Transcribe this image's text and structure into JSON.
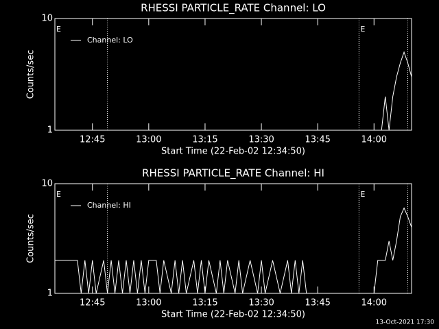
{
  "chart_data": [
    {
      "type": "line",
      "title": "RHESSI PARTICLE_RATE Channel: LO",
      "xlabel": "Start Time (22-Feb-02 12:34:50)",
      "ylabel": "Counts/sec",
      "log_y": true,
      "ylim": [
        1,
        10
      ],
      "yticks": [
        1,
        10
      ],
      "xlim": [
        "12:35",
        "14:10"
      ],
      "xticks": [
        "12:45",
        "13:00",
        "13:15",
        "13:30",
        "13:45",
        "14:00"
      ],
      "event_lines": [
        "12:49",
        "13:56",
        "14:09"
      ],
      "event_labels": [
        {
          "x": "12:35",
          "label": "E"
        },
        {
          "x": "13:56",
          "label": "E"
        }
      ],
      "legend": "upper left",
      "series": [
        {
          "name": "Channel: LO",
          "color": "#ffffff",
          "x": [
            "12:35",
            "14:02",
            "14:03",
            "14:04",
            "14:05",
            "14:06",
            "14:07",
            "14:08",
            "14:09",
            "14:10"
          ],
          "values": [
            1,
            1,
            2,
            1,
            2,
            3,
            4,
            5,
            4,
            3
          ]
        }
      ]
    },
    {
      "type": "line",
      "title": "RHESSI PARTICLE_RATE Channel: HI",
      "xlabel": "Start Time (22-Feb-02 12:34:50)",
      "ylabel": "Counts/sec",
      "log_y": true,
      "ylim": [
        1,
        10
      ],
      "yticks": [
        1,
        10
      ],
      "xlim": [
        "12:35",
        "14:10"
      ],
      "xticks": [
        "12:45",
        "13:00",
        "13:15",
        "13:30",
        "13:45",
        "14:00"
      ],
      "event_lines": [
        "12:49",
        "13:56",
        "14:09"
      ],
      "event_labels": [
        {
          "x": "12:35",
          "label": "E"
        },
        {
          "x": "13:56",
          "label": "E"
        }
      ],
      "legend": "upper left",
      "series": [
        {
          "name": "Channel: HI",
          "color": "#ffffff",
          "x": [
            "12:35",
            "12:41",
            "12:42",
            "12:43",
            "12:44",
            "12:45",
            "12:46",
            "12:48",
            "12:49",
            "12:50",
            "12:51",
            "12:52",
            "12:53",
            "12:54",
            "12:55",
            "12:56",
            "12:57",
            "12:58",
            "12:59",
            "13:00",
            "13:02",
            "13:03",
            "13:04",
            "13:06",
            "13:07",
            "13:08",
            "13:09",
            "13:10",
            "13:12",
            "13:13",
            "13:14",
            "13:15",
            "13:16",
            "13:18",
            "13:19",
            "13:20",
            "13:21",
            "13:23",
            "13:24",
            "13:25",
            "13:27",
            "13:29",
            "13:30",
            "13:31",
            "13:33",
            "13:35",
            "13:37",
            "13:38",
            "13:39",
            "13:40",
            "13:41",
            "13:42",
            "14:00",
            "14:01",
            "14:03",
            "14:04",
            "14:05",
            "14:06",
            "14:07",
            "14:08",
            "14:09",
            "14:10"
          ],
          "values": [
            2,
            2,
            1,
            2,
            1,
            2,
            1,
            2,
            1,
            2,
            1,
            2,
            1,
            2,
            1,
            2,
            1,
            2,
            1,
            2,
            2,
            1,
            2,
            1,
            2,
            1,
            2,
            1,
            2,
            1,
            2,
            1,
            2,
            1,
            2,
            1,
            2,
            1,
            2,
            1,
            2,
            1,
            2,
            1,
            2,
            1,
            2,
            1,
            2,
            1,
            2,
            1,
            1,
            2,
            2,
            3,
            2,
            3,
            5,
            6,
            5,
            4
          ]
        }
      ]
    }
  ],
  "footer": "13-Oct-2021 17:30"
}
